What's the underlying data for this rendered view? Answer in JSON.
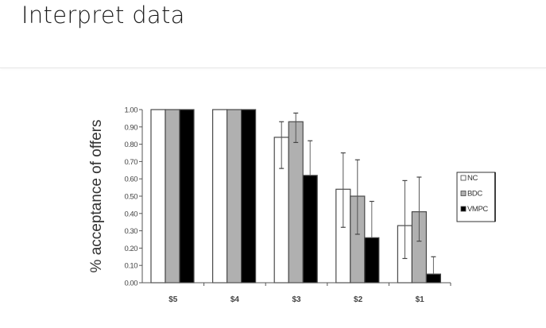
{
  "page": {
    "title": "Interpret data"
  },
  "colors": {
    "NC": "#ffffff",
    "BDC": "#b0b0b0",
    "VMPC": "#000000",
    "axis": "#555555",
    "bar_stroke": "#4a4a4a"
  },
  "chart_data": {
    "type": "bar",
    "title": "",
    "xlabel": "",
    "ylabel": "% acceptance of offers",
    "ylim": [
      0,
      1.0
    ],
    "yticks": [
      "0.00",
      "0.10",
      "0.20",
      "0.30",
      "0.40",
      "0.50",
      "0.60",
      "0.70",
      "0.80",
      "0.90",
      "1.00"
    ],
    "categories": [
      "$5",
      "$4",
      "$3",
      "$2",
      "$1"
    ],
    "series": [
      {
        "name": "NC",
        "values": [
          1.0,
          1.0,
          0.84,
          0.54,
          0.33
        ],
        "error_upper": [
          1.0,
          1.0,
          0.93,
          0.75,
          0.59
        ],
        "error_lower": [
          1.0,
          1.0,
          0.66,
          0.32,
          0.14
        ]
      },
      {
        "name": "BDC",
        "values": [
          1.0,
          1.0,
          0.93,
          0.5,
          0.41
        ],
        "error_upper": [
          1.0,
          1.0,
          0.98,
          0.71,
          0.61
        ],
        "error_lower": [
          1.0,
          1.0,
          0.81,
          0.28,
          0.24
        ]
      },
      {
        "name": "VMPC",
        "values": [
          1.0,
          1.0,
          0.62,
          0.26,
          0.05
        ],
        "error_upper": [
          1.0,
          1.0,
          0.82,
          0.47,
          0.15
        ],
        "error_lower": [
          1.0,
          1.0,
          0.62,
          0.26,
          0.05
        ]
      }
    ],
    "legend": [
      "NC",
      "BDC",
      "VMPC"
    ],
    "legend_position": "right",
    "grid": false,
    "error_bars": true
  }
}
